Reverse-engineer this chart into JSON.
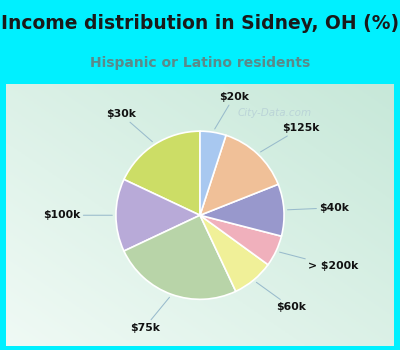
{
  "title": "Income distribution in Sidney, OH (%)",
  "subtitle": "Hispanic or Latino residents",
  "bg_cyan": "#00f0ff",
  "bg_chart_tl": "#e8f5f0",
  "bg_chart_br": "#c8e8d8",
  "labels": [
    "$30k",
    "$100k",
    "$75k",
    "$60k",
    "> $200k",
    "$40k",
    "$125k",
    "$20k"
  ],
  "sizes": [
    18,
    14,
    25,
    8,
    6,
    10,
    14,
    5
  ],
  "colors": [
    "#ccdd66",
    "#b8aad8",
    "#b8d4a8",
    "#f0f098",
    "#f0b0bc",
    "#9898cc",
    "#f0c098",
    "#a8c8f0"
  ],
  "startangle": 90,
  "title_color": "#1a1a1a",
  "subtitle_color": "#5a8a8a",
  "label_color": "#111111",
  "line_color": "#99bbcc",
  "watermark": "City-Data.com",
  "title_fontsize": 13.5,
  "subtitle_fontsize": 10,
  "label_fontsize": 7.8
}
